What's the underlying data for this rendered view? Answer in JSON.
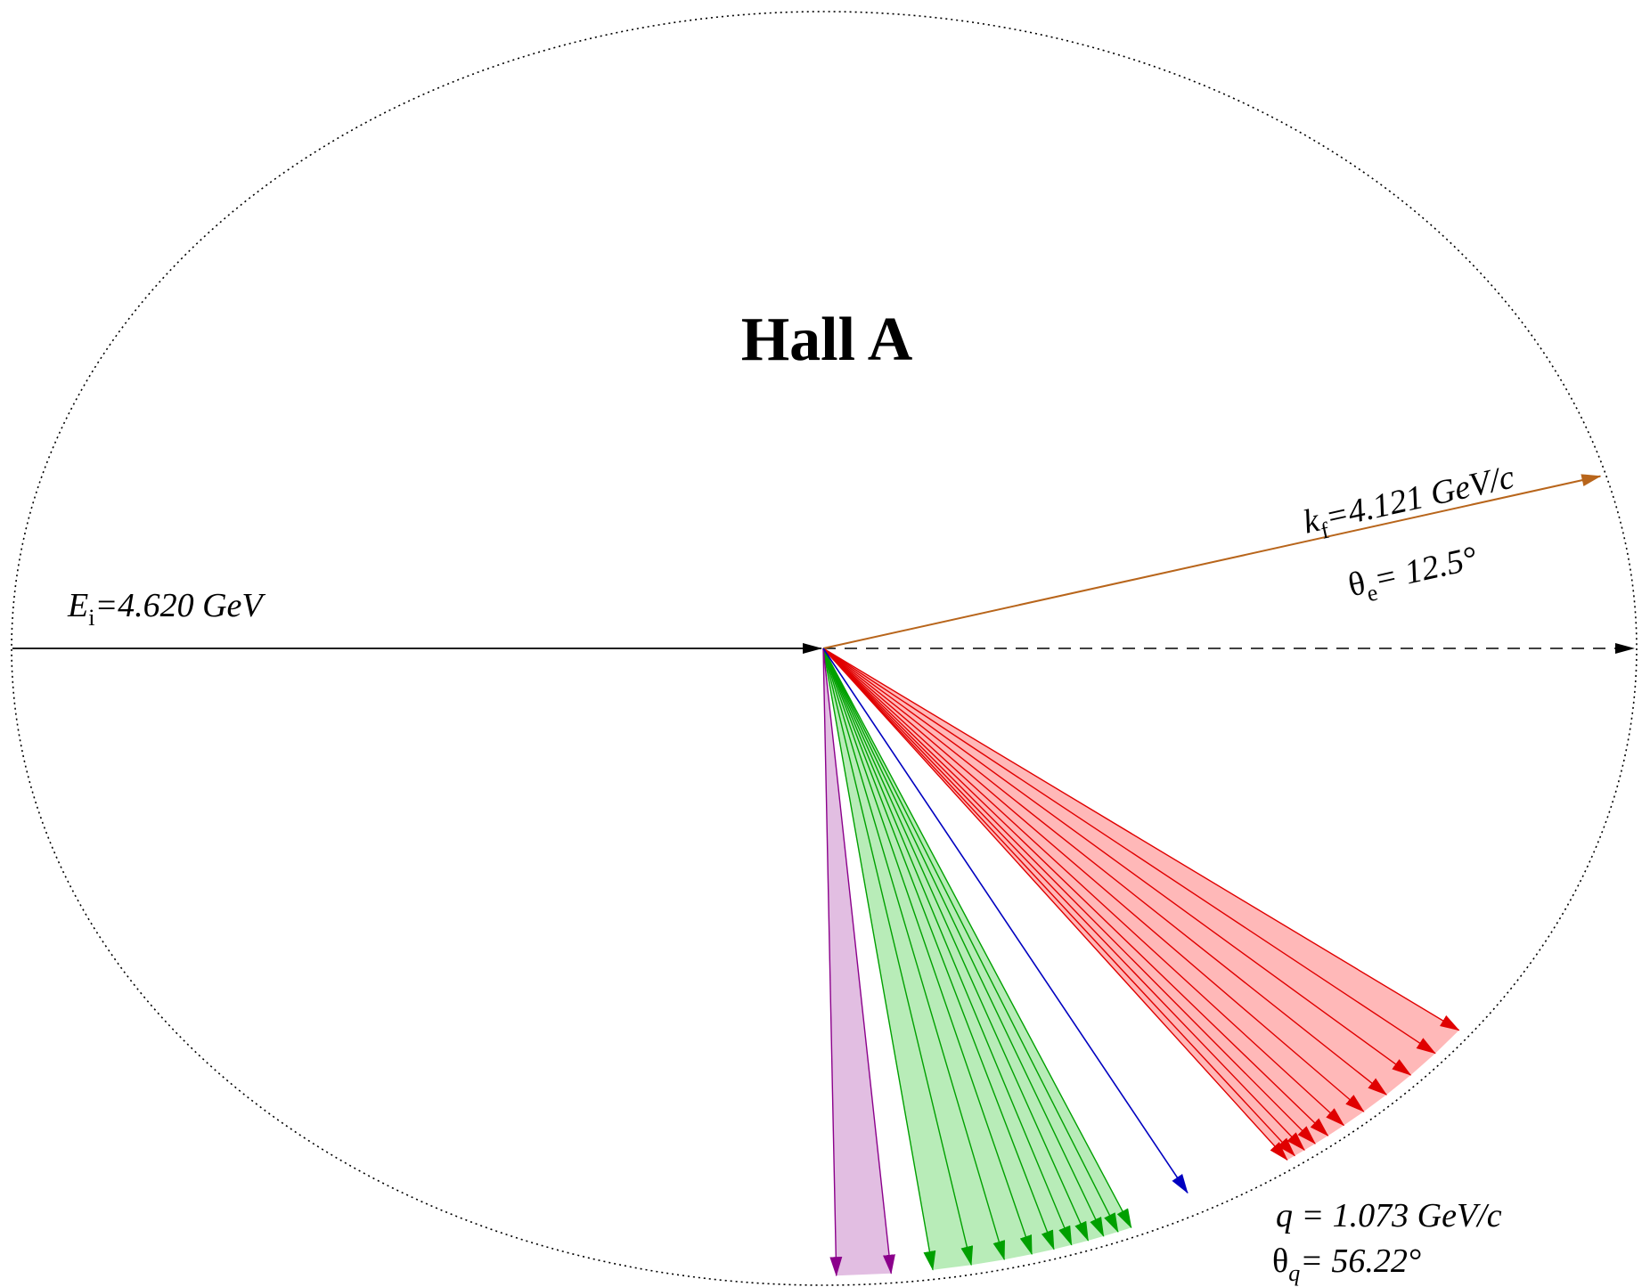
{
  "title": "Hall A",
  "beam": {
    "label": "E",
    "sub": "i",
    "value": "=4.620 GeV"
  },
  "scattered": {
    "label": "k",
    "sub": "f",
    "value": "=4.121 GeV/c",
    "theta_sym": "θ",
    "theta_sub": "e",
    "theta_value": "= 12.5°"
  },
  "q_vector": {
    "q_text": "q = 1.073 GeV/c",
    "theta_sym": "θ",
    "theta_sub": "q",
    "theta_value": "= 56.22°"
  },
  "colors": {
    "beam": "#000000",
    "scattered": "#b8651b",
    "q": "#0000c0",
    "red_fan": "#e00000",
    "red_fill": "#ffb8b8",
    "green_fan": "#00a000",
    "green_fill": "#b8ecb8",
    "purple_fan": "#8b008b",
    "purple_fill": "#e2bee2"
  },
  "fans": {
    "red_angles_deg": [
      31.0,
      33.5,
      36.0,
      38.4,
      40.6,
      42.5,
      44.0,
      45.2,
      46.2,
      47.1,
      47.8
    ],
    "green_angles_deg": [
      62.0,
      63.2,
      64.5,
      65.9,
      67.4,
      69.0,
      71.0,
      73.5,
      76.5,
      80.0
    ],
    "purple_angles_deg": [
      83.8,
      88.8
    ],
    "q_angle_deg": 56.22,
    "scattered_angle_deg": 12.5
  }
}
